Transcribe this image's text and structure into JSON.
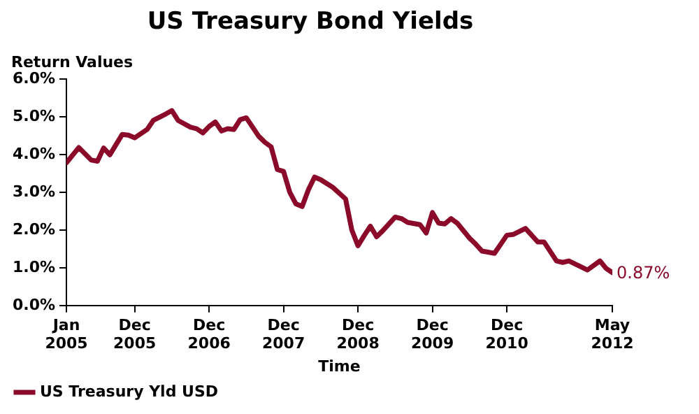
{
  "chart_data": {
    "type": "line",
    "title": "US Treasury Bond Yields",
    "xlabel": "Time",
    "ylabel": "Return Values",
    "x": [
      "2005-01",
      "2005-03",
      "2005-05",
      "2005-06",
      "2005-07",
      "2005-08",
      "2005-10",
      "2005-11",
      "2005-12",
      "2006-02",
      "2006-03",
      "2006-05",
      "2006-06",
      "2006-07",
      "2006-09",
      "2006-10",
      "2006-11",
      "2006-12",
      "2007-01",
      "2007-02",
      "2007-03",
      "2007-04",
      "2007-05",
      "2007-06",
      "2007-08",
      "2007-09",
      "2007-10",
      "2007-11",
      "2007-12",
      "2008-01",
      "2008-02",
      "2008-03",
      "2008-04",
      "2008-05",
      "2008-06",
      "2008-08",
      "2008-10",
      "2008-11",
      "2008-12",
      "2009-01",
      "2009-02",
      "2009-03",
      "2009-04",
      "2009-06",
      "2009-07",
      "2009-08",
      "2009-10",
      "2009-11",
      "2009-12",
      "2010-01",
      "2010-02",
      "2010-03",
      "2010-04",
      "2010-06",
      "2010-07",
      "2010-08",
      "2010-10",
      "2010-12",
      "2011-01",
      "2011-03",
      "2011-05",
      "2011-06",
      "2011-08",
      "2011-09",
      "2011-10",
      "2012-01",
      "2012-03",
      "2012-04",
      "2012-05"
    ],
    "series": [
      {
        "name": "US Treasury Yld USD",
        "color": "#8b0a2a",
        "values": [
          3.78,
          4.18,
          3.85,
          3.82,
          4.17,
          3.99,
          4.53,
          4.51,
          4.44,
          4.66,
          4.9,
          5.07,
          5.16,
          4.9,
          4.72,
          4.68,
          4.57,
          4.74,
          4.86,
          4.62,
          4.68,
          4.66,
          4.92,
          4.97,
          4.48,
          4.32,
          4.2,
          3.6,
          3.55,
          3.0,
          2.69,
          2.62,
          3.06,
          3.4,
          3.33,
          3.12,
          2.82,
          2.0,
          1.58,
          1.85,
          2.1,
          1.82,
          1.98,
          2.34,
          2.3,
          2.2,
          2.14,
          1.92,
          2.46,
          2.18,
          2.16,
          2.3,
          2.18,
          1.78,
          1.62,
          1.44,
          1.38,
          1.86,
          1.88,
          2.04,
          1.68,
          1.68,
          1.18,
          1.14,
          1.18,
          0.94,
          1.18,
          0.98,
          0.87
        ]
      }
    ],
    "xlim": [
      "2005-01",
      "2012-05"
    ],
    "xticks": [
      {
        "value": "2005-01",
        "label": "Jan 2005"
      },
      {
        "value": "2005-12",
        "label": "Dec 2005"
      },
      {
        "value": "2006-12",
        "label": "Dec 2006"
      },
      {
        "value": "2007-12",
        "label": "Dec 2007"
      },
      {
        "value": "2008-12",
        "label": "Dec 2008"
      },
      {
        "value": "2009-12",
        "label": "Dec 2009"
      },
      {
        "value": "2010-12",
        "label": "Dec 2010"
      },
      {
        "value": "2012-05",
        "label": "May 2012"
      }
    ],
    "ylim": [
      0,
      6
    ],
    "yticks": [
      {
        "value": 0,
        "label": "0.0%"
      },
      {
        "value": 1,
        "label": "1.0%"
      },
      {
        "value": 2,
        "label": "2.0%"
      },
      {
        "value": 3,
        "label": "3.0%"
      },
      {
        "value": 4,
        "label": "4.0%"
      },
      {
        "value": 5,
        "label": "5.0%"
      },
      {
        "value": 6,
        "label": "6.0%"
      }
    ],
    "annotations": [
      {
        "text": "0.87%",
        "x": "2012-05",
        "y": 0.87
      }
    ],
    "grid": false,
    "legend": "bottom left",
    "marker": "none",
    "line_style": "solid"
  }
}
